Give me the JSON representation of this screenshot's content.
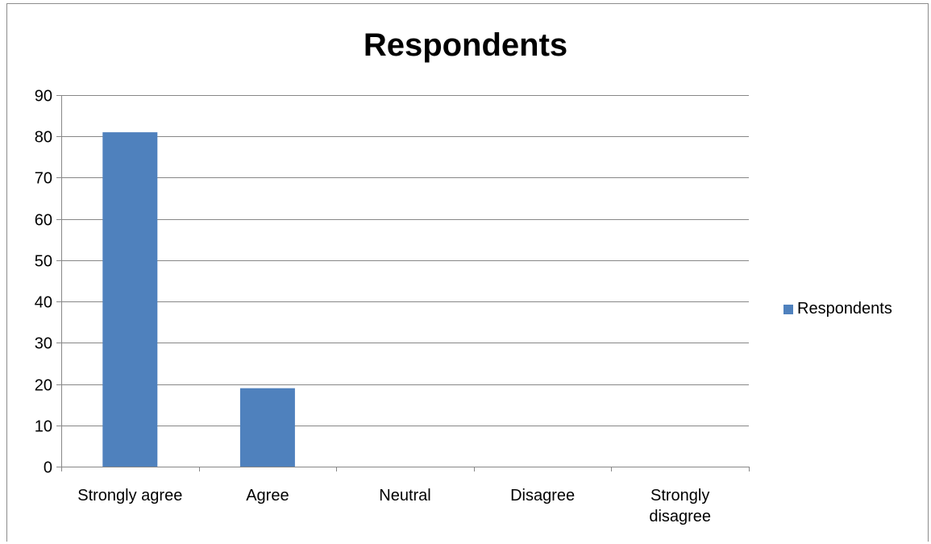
{
  "chart_data": {
    "type": "bar",
    "title": "Respondents",
    "categories": [
      "Strongly agree",
      "Agree",
      "Neutral",
      "Disagree",
      "Strongly disagree"
    ],
    "series": [
      {
        "name": "Respondents",
        "values": [
          81,
          19,
          0,
          0,
          0
        ],
        "color": "#4f81bd"
      }
    ],
    "ylim": [
      0,
      90
    ],
    "yticks": [
      0,
      10,
      20,
      30,
      40,
      50,
      60,
      70,
      80,
      90
    ],
    "grid": true,
    "legend_position": "right"
  }
}
